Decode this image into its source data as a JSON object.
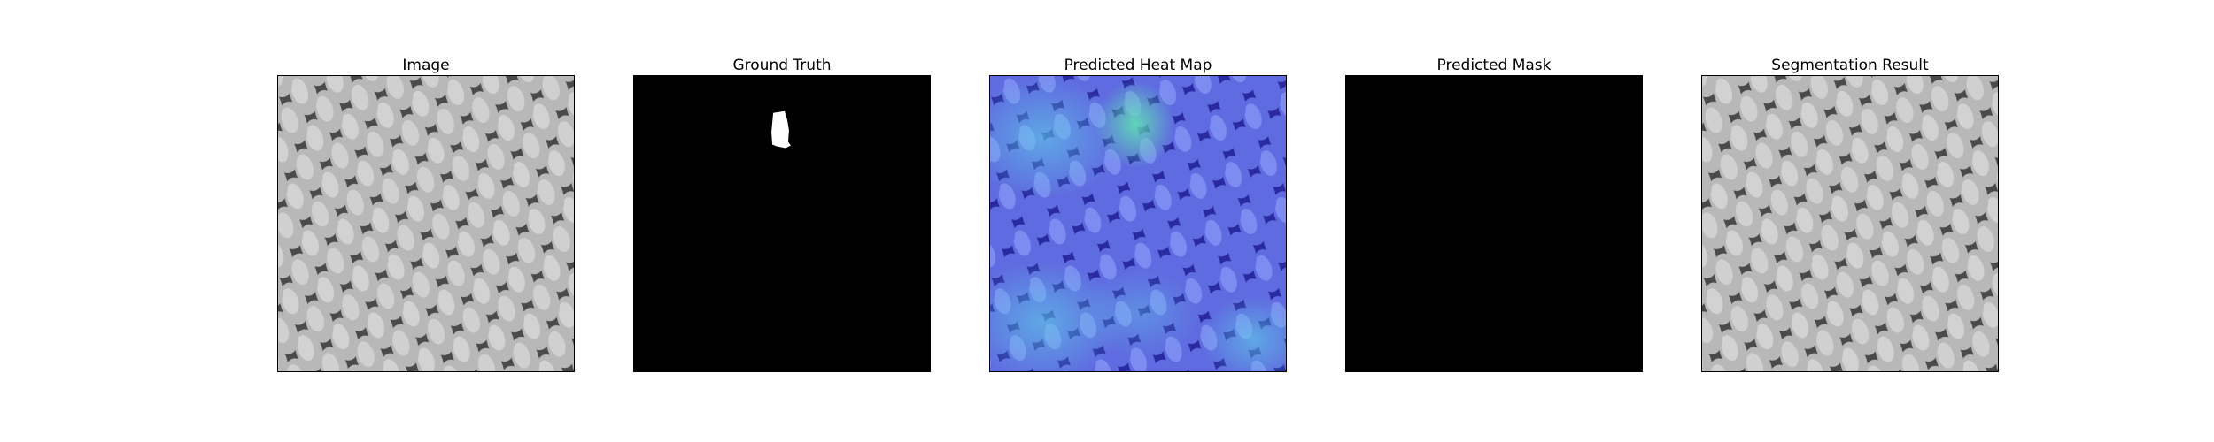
{
  "figure": {
    "panels": [
      {
        "title": "Image",
        "kind": "texture"
      },
      {
        "title": "Ground Truth",
        "kind": "ground-truth"
      },
      {
        "title": "Predicted Heat Map",
        "kind": "heatmap"
      },
      {
        "title": "Predicted Mask",
        "kind": "mask"
      },
      {
        "title": "Segmentation Result",
        "kind": "texture"
      }
    ]
  },
  "colors": {
    "mask_background": "#000000",
    "mask_foreground": "#ffffff",
    "heat_low": "#3b2bd8",
    "heat_high": "#55e6c8"
  }
}
